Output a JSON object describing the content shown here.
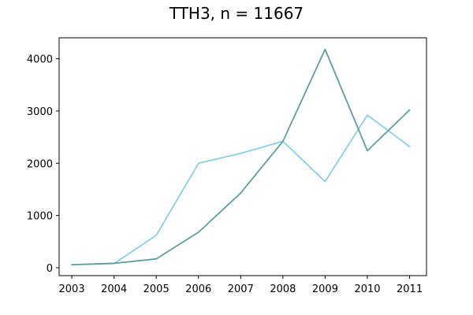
{
  "chart_data": {
    "type": "line",
    "title": "TTH3, n = 11667",
    "xlabel": "",
    "ylabel": "",
    "x": [
      2003,
      2004,
      2005,
      2006,
      2007,
      2008,
      2009,
      2010,
      2011
    ],
    "x_tick_labels": [
      "2003",
      "2004",
      "2005",
      "2006",
      "2007",
      "2008",
      "2009",
      "2010",
      "2011"
    ],
    "y_ticks": [
      0,
      1000,
      2000,
      3000,
      4000
    ],
    "y_tick_labels": [
      "0",
      "1000",
      "2000",
      "3000",
      "4000"
    ],
    "xlim": [
      2002.7,
      2011.4
    ],
    "ylim": [
      -150,
      4400
    ],
    "grid": false,
    "series": [
      {
        "color": "#87CEEB",
        "values": [
          60,
          80,
          620,
          2000,
          2190,
          2420,
          1650,
          2920,
          2320
        ]
      },
      {
        "color": "#5F9EA0",
        "values": [
          60,
          85,
          170,
          680,
          1430,
          2420,
          4180,
          2240,
          3020
        ]
      }
    ]
  }
}
